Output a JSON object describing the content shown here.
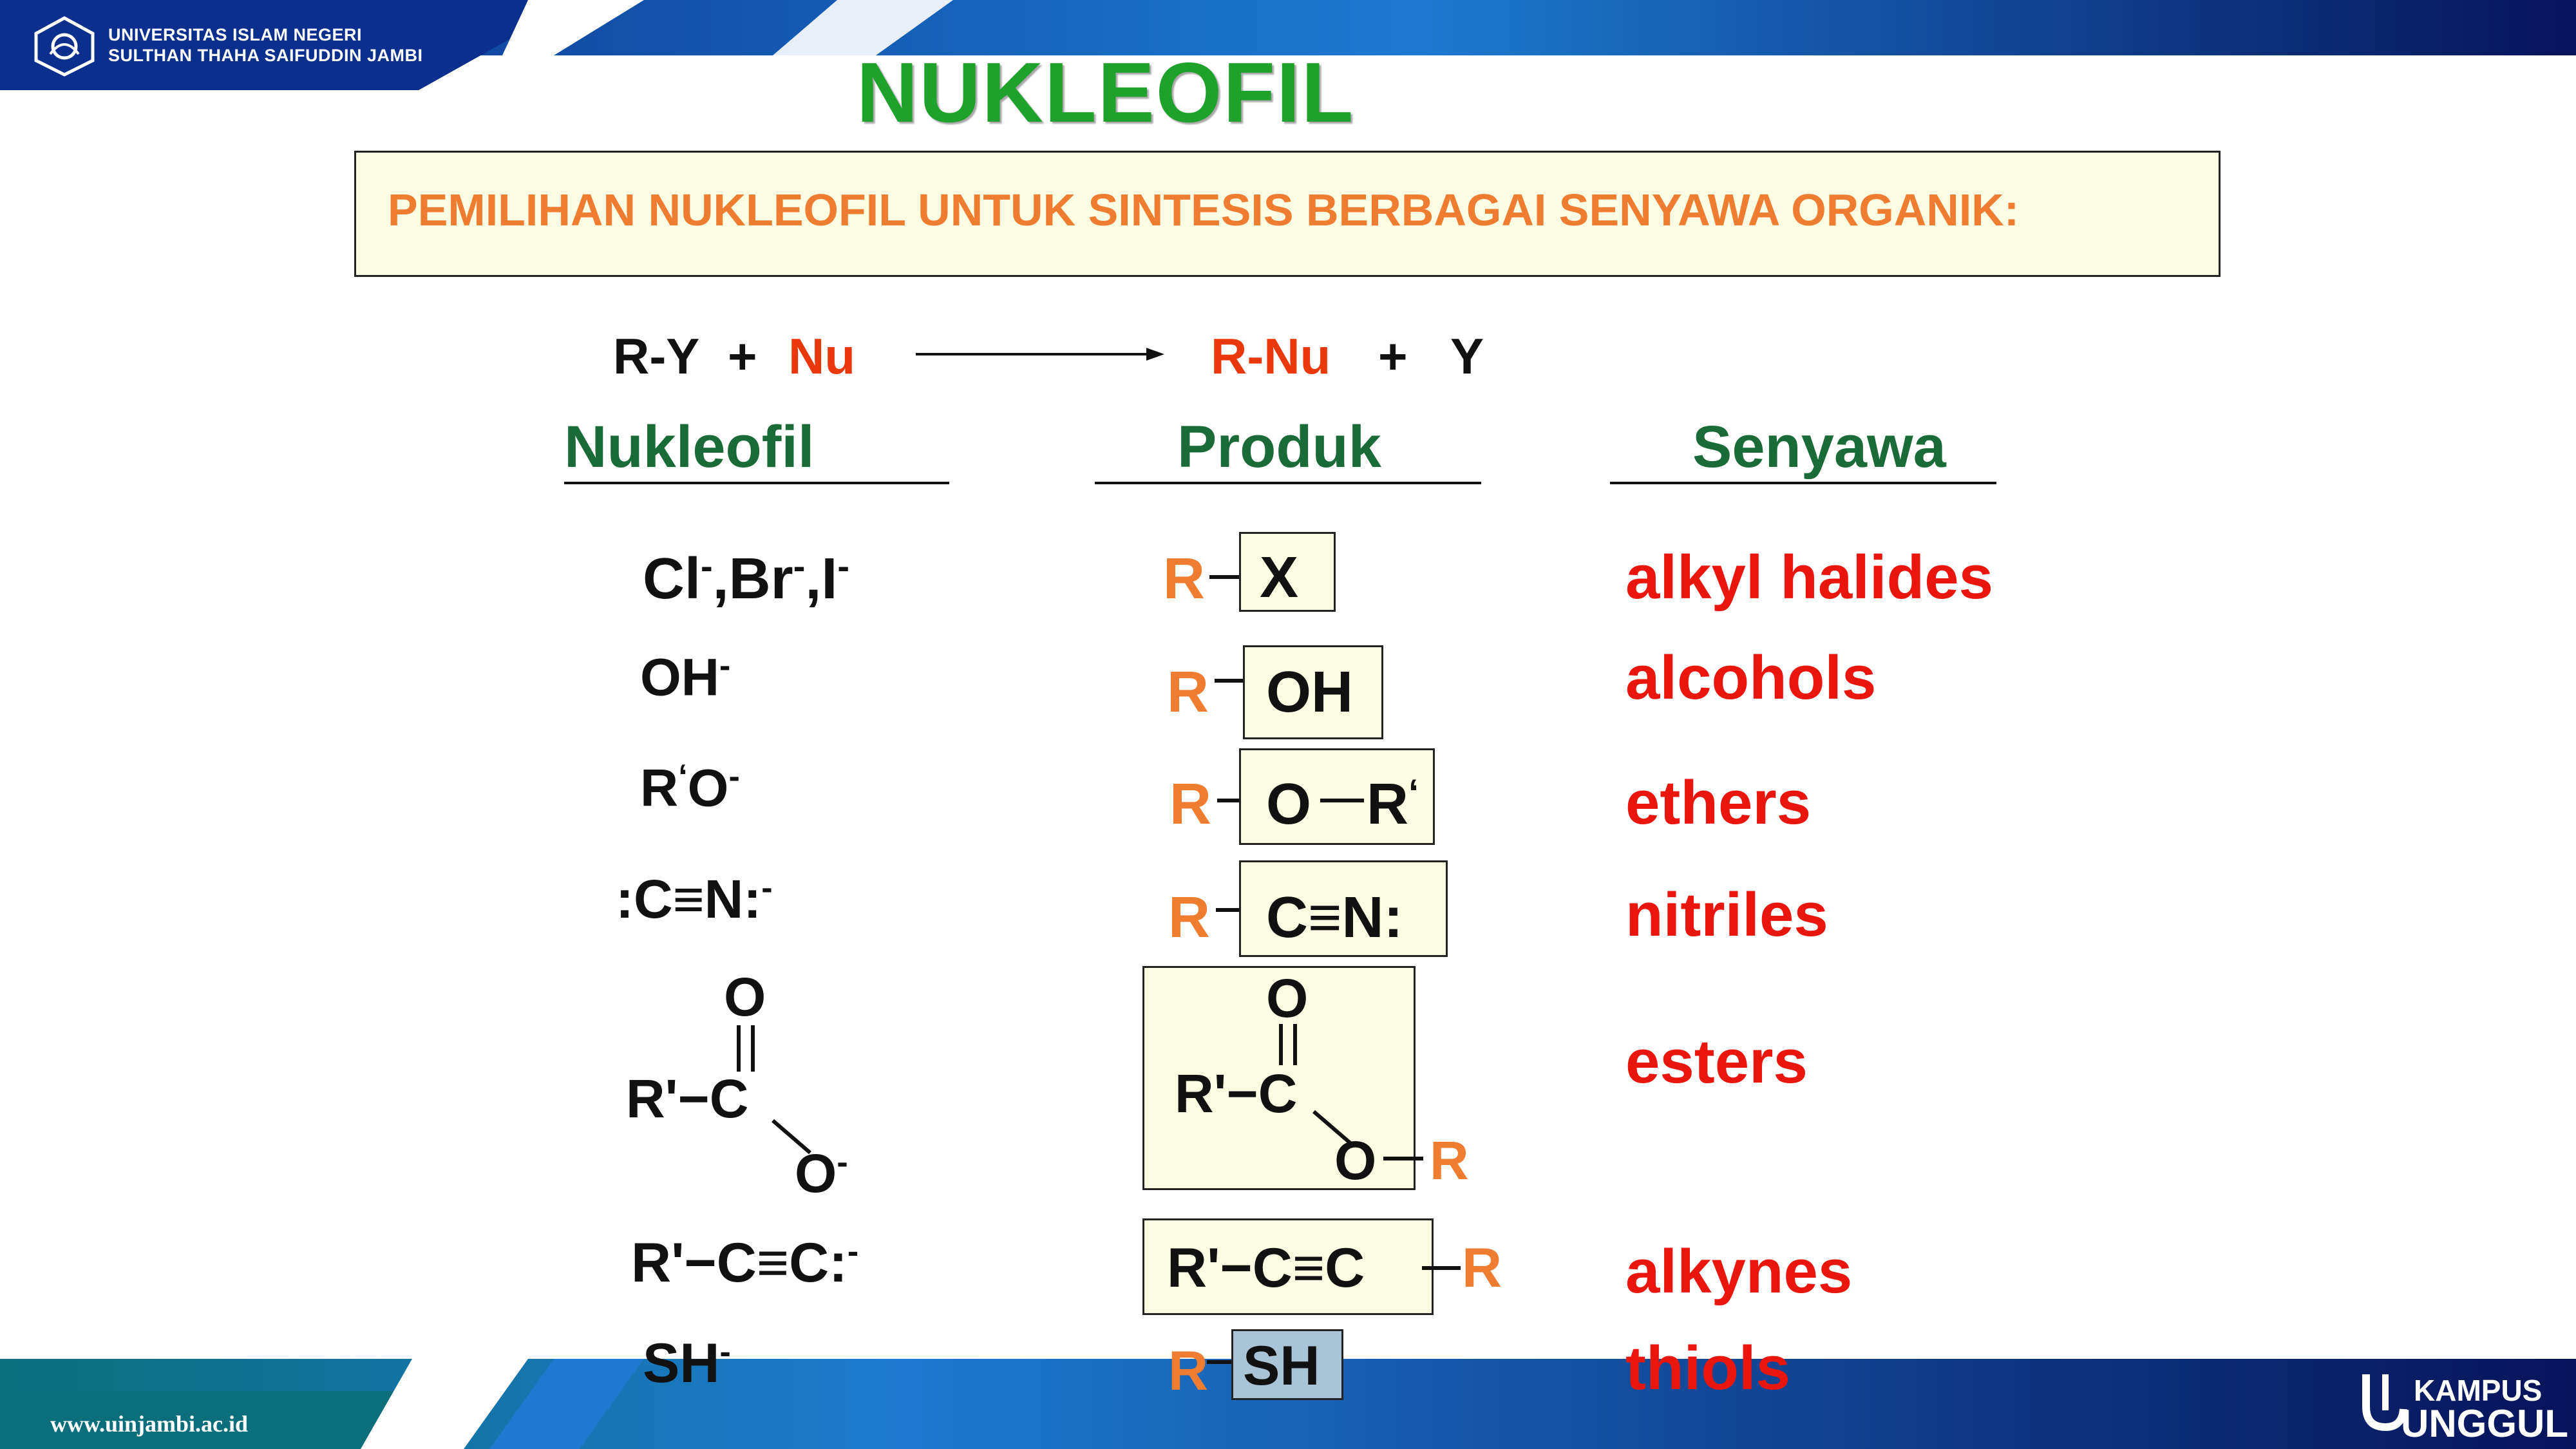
{
  "header": {
    "university_line1": "UNIVERSITAS ISLAM NEGERI",
    "university_line2": "SULTHAN THAHA SAIFUDDIN JAMBI"
  },
  "slide": {
    "title": "NUKLEOFIL",
    "subtitle": "PEMILIHAN NUKLEOFIL UNTUK SINTESIS BERBAGAI SENYAWA ORGANIK:"
  },
  "equation": {
    "substrate": "R-Y",
    "plus1": "+",
    "nu": "Nu",
    "product": "R-Nu",
    "plus2": "+",
    "leaving": "Y"
  },
  "columns": {
    "nucleophile": "Nukleofil",
    "product": "Produk",
    "compound": "Senyawa"
  },
  "rows": {
    "halides": {
      "compound": "alkyl halides",
      "product_group": "X"
    },
    "alcohols": {
      "compound": "alcohols",
      "product_group": "OH"
    },
    "ethers": {
      "compound": "ethers"
    },
    "nitriles": {
      "compound": "nitriles"
    },
    "esters": {
      "compound": "esters"
    },
    "alkynes": {
      "compound": "alkynes"
    },
    "thiols": {
      "compound": "thiols",
      "product_group": "SH"
    }
  },
  "footer": {
    "url": "www.uinjambi.ac.id",
    "brand_line1": "KAMPUS",
    "brand_line2": "UNGGUL"
  },
  "colors": {
    "title_green": "#1fa22c",
    "header_green": "#1a6b37",
    "accent_orange": "#ee7d31",
    "compound_red": "#e8160c",
    "brand_blue": "#0a2f8c"
  }
}
